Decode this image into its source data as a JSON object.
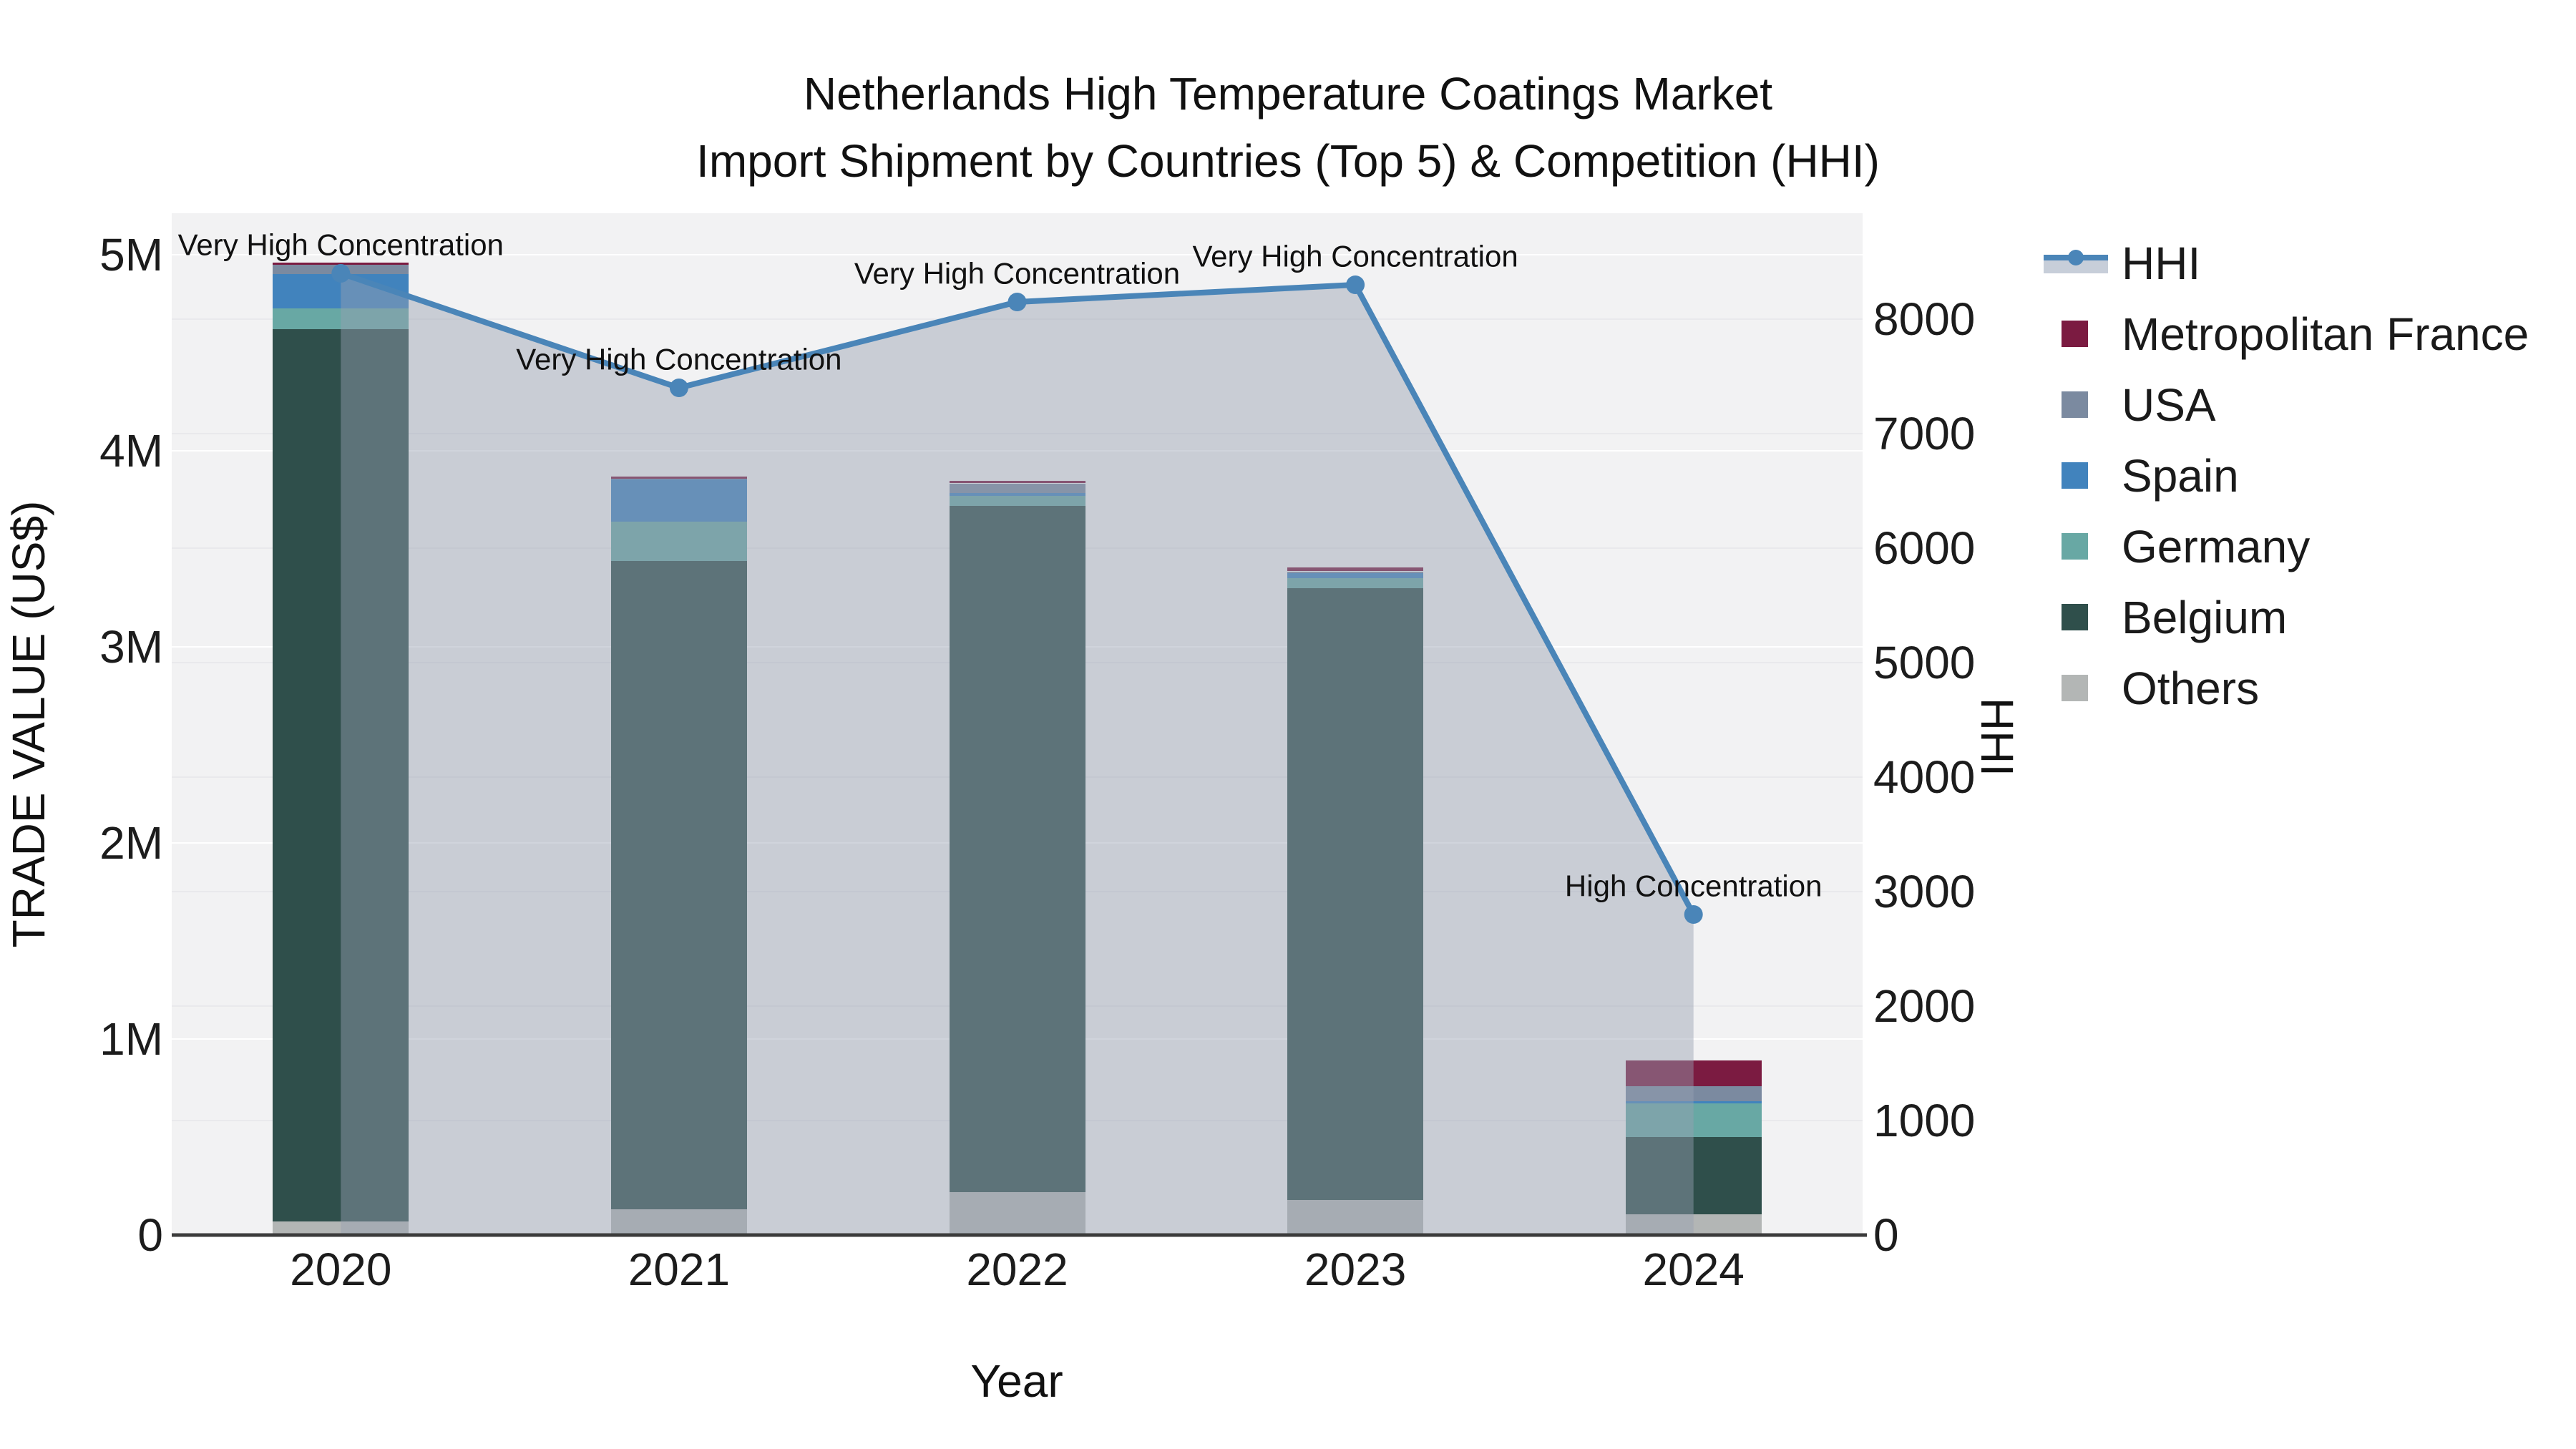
{
  "title": {
    "line1": "Netherlands High Temperature Coatings Market",
    "line2": "Import Shipment by Countries (Top 5) & Competition (HHI)"
  },
  "legend": {
    "items": [
      {
        "label": "HHI",
        "marker": "line-dot-band",
        "color": "#4a85b8"
      },
      {
        "label": "Metropolitan France",
        "marker": "square",
        "color": "#7b1b41"
      },
      {
        "label": "USA",
        "marker": "square",
        "color": "#7b8aa0"
      },
      {
        "label": "Spain",
        "marker": "square",
        "color": "#4183bd"
      },
      {
        "label": "Germany",
        "marker": "square",
        "color": "#68a8a4"
      },
      {
        "label": "Belgium",
        "marker": "square",
        "color": "#2f4f4b"
      },
      {
        "label": "Others",
        "marker": "square",
        "color": "#b3b6b5"
      }
    ]
  },
  "colors": {
    "background": "#ffffff",
    "plot_bg": "#f2f2f3",
    "axis_line": "#3b3b3b",
    "grid_major": "#ffffff",
    "grid_minor": "#e9e9ec",
    "hhi_line": "#4a85b8",
    "hhi_fill": "rgba(150,160,178,0.45)",
    "annotation_text": "#111111",
    "tick_text": "#1c1c1c"
  },
  "chart_data": {
    "type": "combo-stacked-bar-line",
    "categories": [
      "2020",
      "2021",
      "2022",
      "2023",
      "2024"
    ],
    "x_title": "Year",
    "bar_value_unit": "US$ millions",
    "series": [
      {
        "name": "Others",
        "color": "#b3b6b5",
        "values": [
          0.07,
          0.13,
          0.22,
          0.18,
          0.105
        ]
      },
      {
        "name": "Belgium",
        "color": "#2f4f4b",
        "values": [
          4.55,
          3.31,
          3.5,
          3.12,
          0.395
        ]
      },
      {
        "name": "Germany",
        "color": "#68a8a4",
        "values": [
          0.105,
          0.2,
          0.05,
          0.05,
          0.17
        ]
      },
      {
        "name": "Spain",
        "color": "#4183bd",
        "values": [
          0.175,
          0.215,
          0.015,
          0.03,
          0.012
        ]
      },
      {
        "name": "USA",
        "color": "#7b8aa0",
        "values": [
          0.048,
          0.005,
          0.048,
          0.005,
          0.077
        ]
      },
      {
        "name": "Metropolitan France",
        "color": "#7b1b41",
        "values": [
          0.012,
          0.01,
          0.012,
          0.02,
          0.13
        ]
      }
    ],
    "line_series": {
      "name": "HHI",
      "values": [
        8400,
        7400,
        8150,
        8300,
        2800
      ],
      "area_fill": true
    },
    "annotations": [
      {
        "category": "2020",
        "text": "Very High Concentration"
      },
      {
        "category": "2021",
        "text": "Very High Concentration"
      },
      {
        "category": "2022",
        "text": "Very High Concentration"
      },
      {
        "category": "2023",
        "text": "Very High Concentration"
      },
      {
        "category": "2024",
        "text": "High Concentration"
      }
    ],
    "y_left": {
      "title": "TRADE VALUE (US$)",
      "tick_labels": [
        "0",
        "1M",
        "2M",
        "3M",
        "4M",
        "5M"
      ],
      "tick_values": [
        0,
        1,
        2,
        3,
        4,
        5
      ]
    },
    "y_right": {
      "title": "HHI",
      "tick_labels": [
        "0",
        "1000",
        "2000",
        "3000",
        "4000",
        "5000",
        "6000",
        "7000",
        "8000"
      ],
      "tick_values": [
        0,
        1000,
        2000,
        3000,
        4000,
        5000,
        6000,
        7000,
        8000
      ]
    },
    "layout_hints": {
      "grid": true,
      "legend_position": "right",
      "bars_shaded_by_area_fill": true
    }
  }
}
